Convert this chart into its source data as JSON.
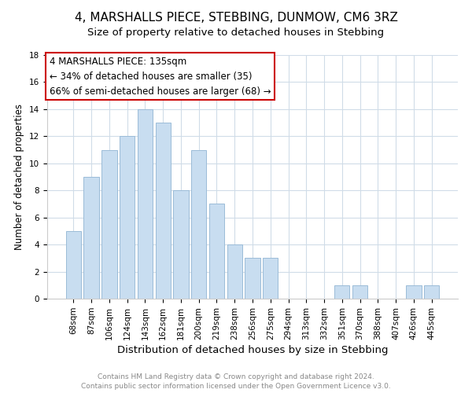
{
  "title": "4, MARSHALLS PIECE, STEBBING, DUNMOW, CM6 3RZ",
  "subtitle": "Size of property relative to detached houses in Stebbing",
  "xlabel": "Distribution of detached houses by size in Stebbing",
  "ylabel": "Number of detached properties",
  "bar_labels": [
    "68sqm",
    "87sqm",
    "106sqm",
    "124sqm",
    "143sqm",
    "162sqm",
    "181sqm",
    "200sqm",
    "219sqm",
    "238sqm",
    "256sqm",
    "275sqm",
    "294sqm",
    "313sqm",
    "332sqm",
    "351sqm",
    "370sqm",
    "388sqm",
    "407sqm",
    "426sqm",
    "445sqm"
  ],
  "bar_values": [
    5,
    9,
    11,
    12,
    14,
    13,
    8,
    11,
    7,
    4,
    3,
    3,
    0,
    0,
    0,
    1,
    1,
    0,
    0,
    1,
    1
  ],
  "bar_color": "#c8ddf0",
  "bar_edge_color": "#9bbcd8",
  "ylim": [
    0,
    18
  ],
  "yticks": [
    0,
    2,
    4,
    6,
    8,
    10,
    12,
    14,
    16,
    18
  ],
  "annotation_line1": "4 MARSHALLS PIECE: 135sqm",
  "annotation_line2": "← 34% of detached houses are smaller (35)",
  "annotation_line3": "66% of semi-detached houses are larger (68) →",
  "annotation_box_color": "#ffffff",
  "annotation_box_edge_color": "#cc0000",
  "footer_line1": "Contains HM Land Registry data © Crown copyright and database right 2024.",
  "footer_line2": "Contains public sector information licensed under the Open Government Licence v3.0.",
  "background_color": "#ffffff",
  "grid_color": "#d0dce8",
  "title_fontsize": 11,
  "subtitle_fontsize": 9.5,
  "xlabel_fontsize": 9.5,
  "ylabel_fontsize": 8.5,
  "tick_fontsize": 7.5,
  "footer_fontsize": 6.5,
  "annotation_fontsize": 8.5
}
